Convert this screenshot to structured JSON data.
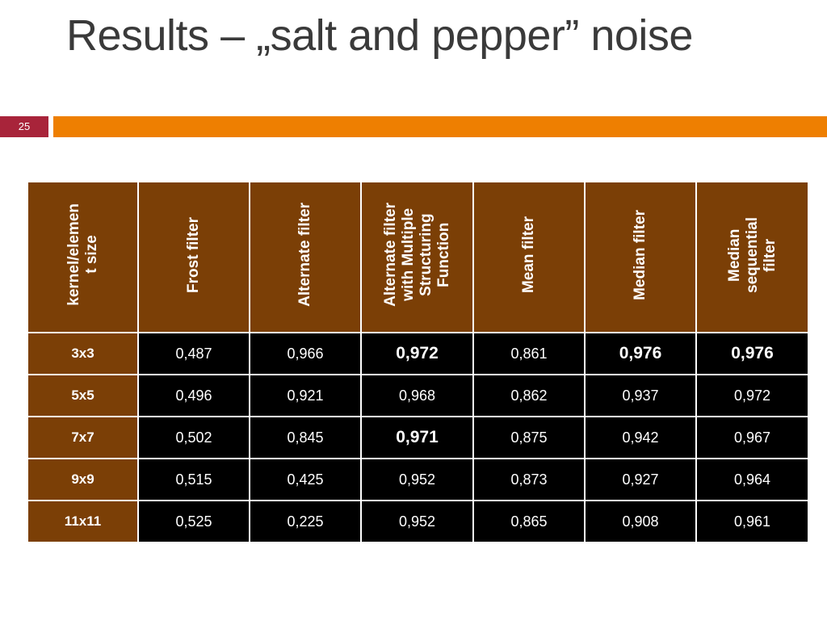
{
  "slide": {
    "title": "Results – „salt and pepper” noise",
    "number": "25"
  },
  "colors": {
    "title_text": "#3a3a3a",
    "slide_number_bg": "#a8243a",
    "accent_bar": "#ee7f01",
    "table_header_bg": "#7b3f06",
    "table_cell_bg": "#000000",
    "table_text": "#ffffff"
  },
  "table": {
    "headers": [
      "kernel/elemen\nt size",
      "Frost filter",
      "Alternate filter",
      "Alternate filter\nwith Multiple\nStructuring\nFunction",
      "Mean filter",
      "Median filter",
      "Median\nsequential\nfilter"
    ],
    "rows": [
      {
        "label": "3x3",
        "values": [
          "0,487",
          "0,966",
          "0,972",
          "0,861",
          "0,976",
          "0,976"
        ],
        "bold": [
          false,
          false,
          true,
          false,
          true,
          true
        ]
      },
      {
        "label": "5x5",
        "values": [
          "0,496",
          "0,921",
          "0,968",
          "0,862",
          "0,937",
          "0,972"
        ],
        "bold": [
          false,
          false,
          false,
          false,
          false,
          false
        ]
      },
      {
        "label": "7x7",
        "values": [
          "0,502",
          "0,845",
          "0,971",
          "0,875",
          "0,942",
          "0,967"
        ],
        "bold": [
          false,
          false,
          true,
          false,
          false,
          false
        ]
      },
      {
        "label": "9x9",
        "values": [
          "0,515",
          "0,425",
          "0,952",
          "0,873",
          "0,927",
          "0,964"
        ],
        "bold": [
          false,
          false,
          false,
          false,
          false,
          false
        ]
      },
      {
        "label": "11x11",
        "values": [
          "0,525",
          "0,225",
          "0,952",
          "0,865",
          "0,908",
          "0,961"
        ],
        "bold": [
          false,
          false,
          false,
          false,
          false,
          false
        ]
      }
    ]
  }
}
